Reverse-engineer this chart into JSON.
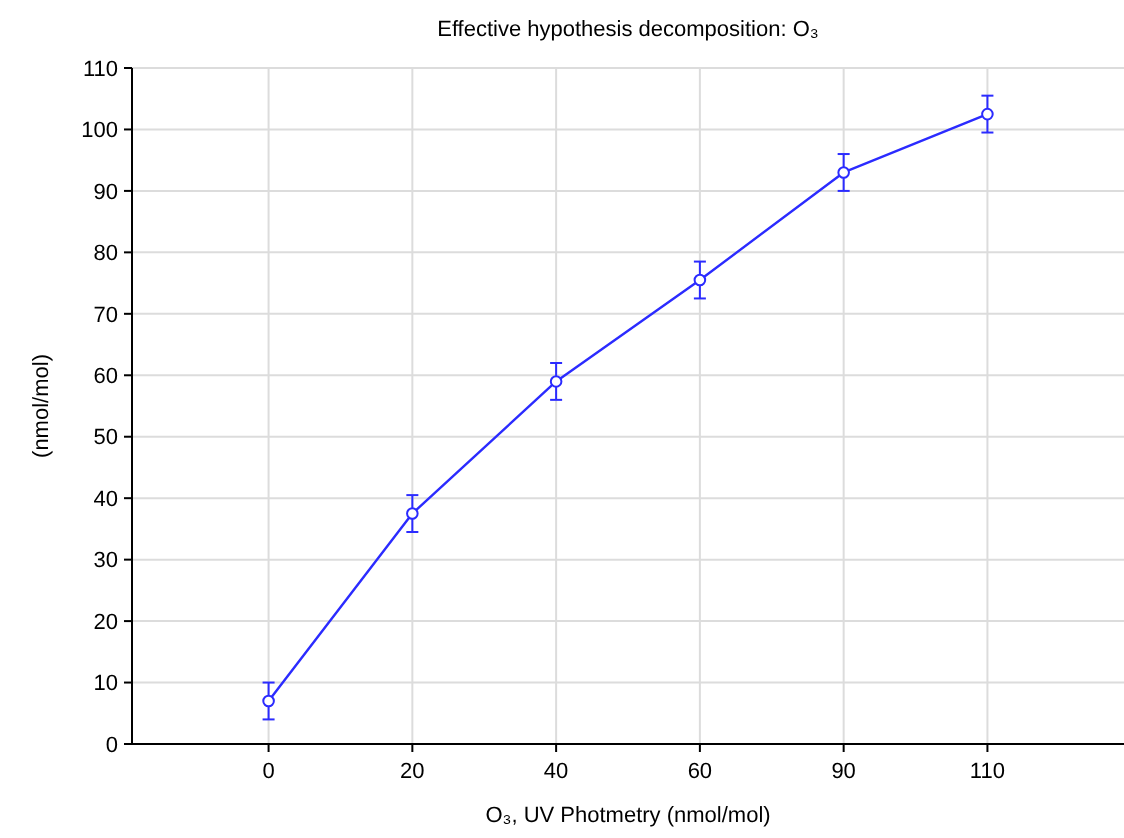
{
  "chart_data": {
    "type": "line",
    "title": "Effective hypothesis decomposition: O₃",
    "xlabel": "O₃, UV Photmetry (nmol/mol)",
    "ylabel": "(nmol/mol)",
    "categories": [
      "0",
      "20",
      "40",
      "60",
      "90",
      "110"
    ],
    "series": [
      {
        "color": "#2b2bff",
        "values": [
          7,
          37.5,
          59,
          75.5,
          93,
          102.5
        ],
        "errors": [
          3,
          3,
          3,
          3,
          3,
          3
        ]
      }
    ],
    "ylim": [
      0,
      110
    ],
    "yticks": [
      0,
      10,
      20,
      30,
      40,
      50,
      60,
      70,
      80,
      90,
      100,
      110
    ],
    "grid": true,
    "marker": "circle",
    "line_style": "solid"
  }
}
